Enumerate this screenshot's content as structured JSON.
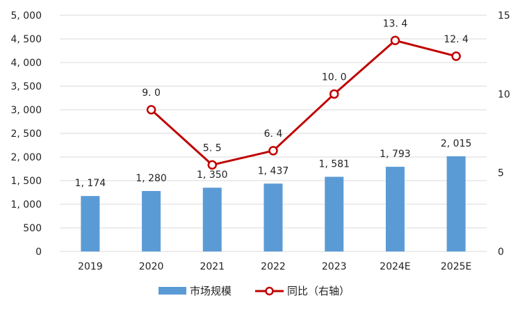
{
  "chart_data": {
    "type": "bar+line",
    "categories": [
      "2019",
      "2020",
      "2021",
      "2022",
      "2023",
      "2024E",
      "2025E"
    ],
    "series": [
      {
        "name": "市场规模",
        "type": "bar",
        "axis": "left",
        "values": [
          1174,
          1280,
          1350,
          1437,
          1581,
          1793,
          2015
        ],
        "labels": [
          "1, 174",
          "1, 280",
          "1, 350",
          "1, 437",
          "1, 581",
          "1, 793",
          "2, 015"
        ],
        "color": "#5B9BD5"
      },
      {
        "name": "同比（右轴）",
        "type": "line",
        "axis": "right",
        "values": [
          null,
          9.0,
          5.5,
          6.4,
          10.0,
          13.4,
          12.4
        ],
        "labels": [
          "",
          "9. 0",
          "5. 5",
          "6. 4",
          "10. 0",
          "13. 4",
          "12. 4"
        ],
        "color": "#C00000"
      }
    ],
    "left_axis": {
      "range": [
        0,
        5000
      ],
      "ticks": [
        0,
        500,
        1000,
        1500,
        2000,
        2500,
        3000,
        3500,
        4000,
        4500,
        5000
      ],
      "tick_labels": [
        "0",
        "500",
        "1, 000",
        "1, 500",
        "2, 000",
        "2, 500",
        "3, 000",
        "3, 500",
        "4, 000",
        "4, 500",
        "5, 000"
      ]
    },
    "right_axis": {
      "range": [
        0,
        15
      ],
      "ticks": [
        0,
        5,
        10,
        15
      ],
      "tick_labels": [
        "0",
        "5",
        "10",
        "15"
      ]
    },
    "grid": true,
    "legend_position": "bottom"
  }
}
